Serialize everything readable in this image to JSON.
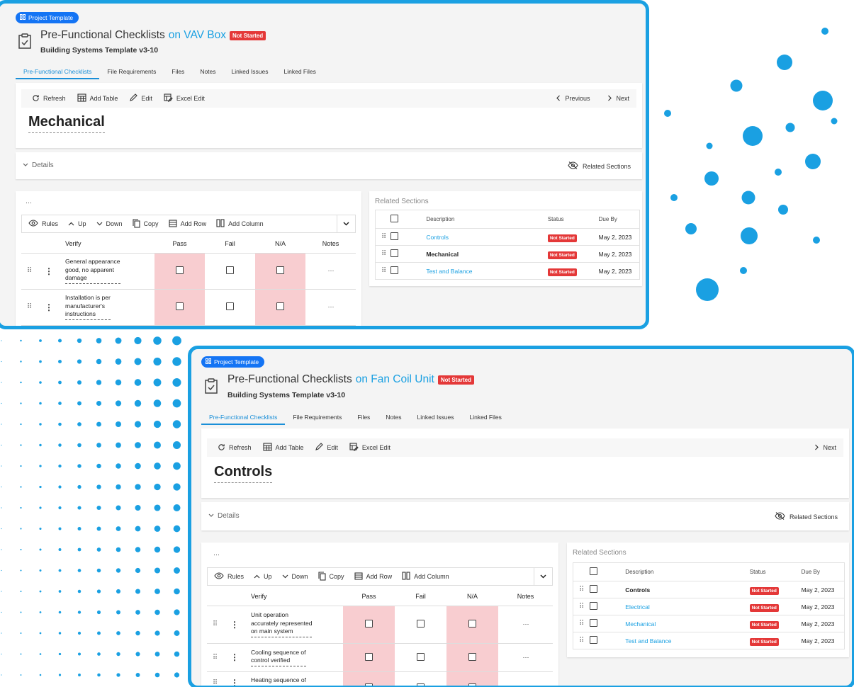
{
  "card1": {
    "badge": "Project Template",
    "title_prefix": "Pre-Functional Checklists",
    "title_on": "on VAV Box",
    "status": "Not Started",
    "subtitle": "Building Systems Template v3-10",
    "tabs": [
      "Pre-Functional Checklists",
      "File Requirements",
      "Files",
      "Notes",
      "Linked Issues",
      "Linked Files"
    ],
    "toolbar": {
      "refresh": "Refresh",
      "add_table": "Add Table",
      "edit": "Edit",
      "excel_edit": "Excel Edit",
      "previous": "Previous",
      "next": "Next"
    },
    "section_title": "Mechanical",
    "details": "Details",
    "related_sections_btn": "Related Sections",
    "table_toolbar": {
      "rules": "Rules",
      "up": "Up",
      "down": "Down",
      "copy": "Copy",
      "add_row": "Add Row",
      "add_column": "Add Column"
    },
    "table_headers": {
      "verify": "Verify",
      "pass": "Pass",
      "fail": "Fail",
      "na": "N/A",
      "notes": "Notes"
    },
    "rows": [
      [
        "General appearance",
        "good, no apparent",
        "damage"
      ],
      [
        "Installation is per",
        "manufacturer's",
        "instructions"
      ]
    ],
    "related_title": "Related Sections",
    "related_headers": {
      "description": "Description",
      "status": "Status",
      "due": "Due By"
    },
    "related_rows": [
      {
        "desc": "Controls",
        "status": "Not Started",
        "due": "May 2, 2023",
        "style": "link"
      },
      {
        "desc": "Mechanical",
        "status": "Not Started",
        "due": "May 2, 2023",
        "style": "bold"
      },
      {
        "desc": "Test and Balance",
        "status": "Not Started",
        "due": "May 2, 2023",
        "style": "link"
      }
    ]
  },
  "card2": {
    "badge": "Project Template",
    "title_prefix": "Pre-Functional Checklists",
    "title_on": "on Fan Coil Unit",
    "status": "Not Started",
    "subtitle": "Building Systems Template v3-10",
    "tabs": [
      "Pre-Functional Checklists",
      "File Requirements",
      "Files",
      "Notes",
      "Linked Issues",
      "Linked Files"
    ],
    "toolbar": {
      "refresh": "Refresh",
      "add_table": "Add Table",
      "edit": "Edit",
      "excel_edit": "Excel Edit",
      "next": "Next"
    },
    "section_title": "Controls",
    "details": "Details",
    "related_sections_btn": "Related Sections",
    "table_toolbar": {
      "rules": "Rules",
      "up": "Up",
      "down": "Down",
      "copy": "Copy",
      "add_row": "Add Row",
      "add_column": "Add Column"
    },
    "table_headers": {
      "verify": "Verify",
      "pass": "Pass",
      "fail": "Fail",
      "na": "N/A",
      "notes": "Notes"
    },
    "rows": [
      [
        "Unit operation",
        "accurately represented",
        "on main system"
      ],
      [
        "Cooling sequence of",
        "control verified"
      ],
      [
        "Heating sequence of"
      ]
    ],
    "related_title": "Related Sections",
    "related_headers": {
      "description": "Description",
      "status": "Status",
      "due": "Due By"
    },
    "related_rows": [
      {
        "desc": "Controls",
        "status": "Not Started",
        "due": "May 2, 2023",
        "style": "bold"
      },
      {
        "desc": "Electrical",
        "status": "Not Started",
        "due": "May 2, 2023",
        "style": "link"
      },
      {
        "desc": "Mechanical",
        "status": "Not Started",
        "due": "May 2, 2023",
        "style": "link"
      },
      {
        "desc": "Test and Balance",
        "status": "Not Started",
        "due": "May 2, 2023",
        "style": "link"
      }
    ]
  },
  "colors": {
    "accent": "#1aa0e2",
    "badge": "#1474f4",
    "status": "#e43838",
    "pass_na_fill": "#f8cdd0"
  }
}
